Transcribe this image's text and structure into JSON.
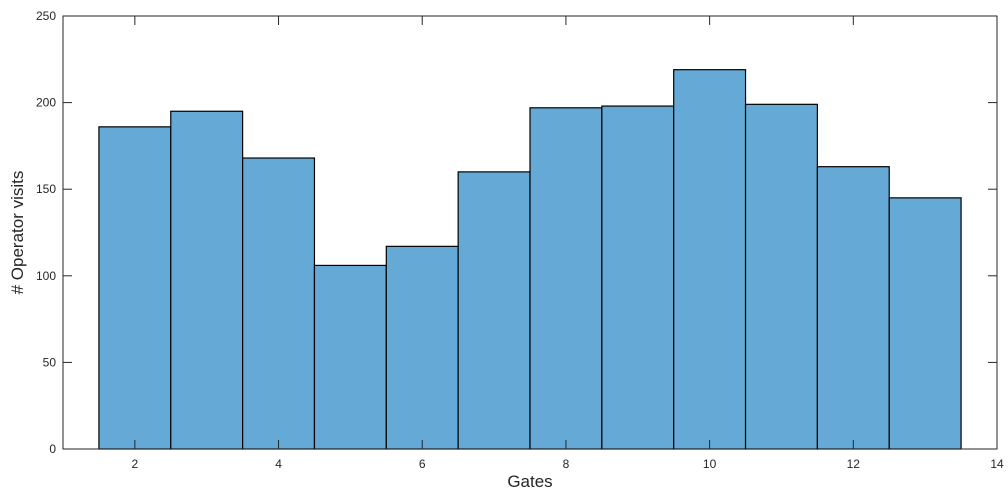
{
  "chart_data": {
    "type": "bar",
    "title": "",
    "xlabel": "Gates",
    "ylabel": "# Operator visits",
    "x": [
      2,
      3,
      4,
      5,
      6,
      7,
      8,
      9,
      10,
      11,
      12,
      13
    ],
    "values": [
      186,
      195,
      168,
      106,
      117,
      160,
      197,
      198,
      219,
      199,
      163,
      145
    ],
    "bar_width": 1,
    "xlim": [
      1,
      14
    ],
    "ylim": [
      0,
      250
    ],
    "xticks": [
      2,
      4,
      6,
      8,
      10,
      12,
      14
    ],
    "yticks": [
      0,
      50,
      100,
      150,
      200,
      250
    ],
    "grid": false,
    "bar_color": "#65a9d7",
    "edge_color": "#000000"
  }
}
